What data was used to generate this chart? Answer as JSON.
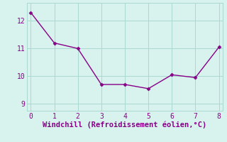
{
  "x": [
    0,
    1,
    2,
    3,
    4,
    5,
    6,
    7,
    8
  ],
  "y": [
    12.3,
    11.2,
    11.0,
    9.7,
    9.7,
    9.55,
    10.05,
    9.95,
    11.05
  ],
  "line_color": "#880088",
  "marker": "D",
  "marker_size": 2.5,
  "line_width": 1.0,
  "background_color": "#d8f2ee",
  "grid_color": "#aad8d0",
  "xlabel": "Windchill (Refroidissement éolien,°C)",
  "xlabel_color": "#880088",
  "xlabel_fontsize": 7.5,
  "tick_color": "#880088",
  "tick_fontsize": 7,
  "xlim": [
    -0.15,
    8.15
  ],
  "ylim": [
    8.75,
    12.65
  ],
  "yticks": [
    9,
    10,
    11,
    12
  ],
  "xticks": [
    0,
    1,
    2,
    3,
    4,
    5,
    6,
    7,
    8
  ]
}
